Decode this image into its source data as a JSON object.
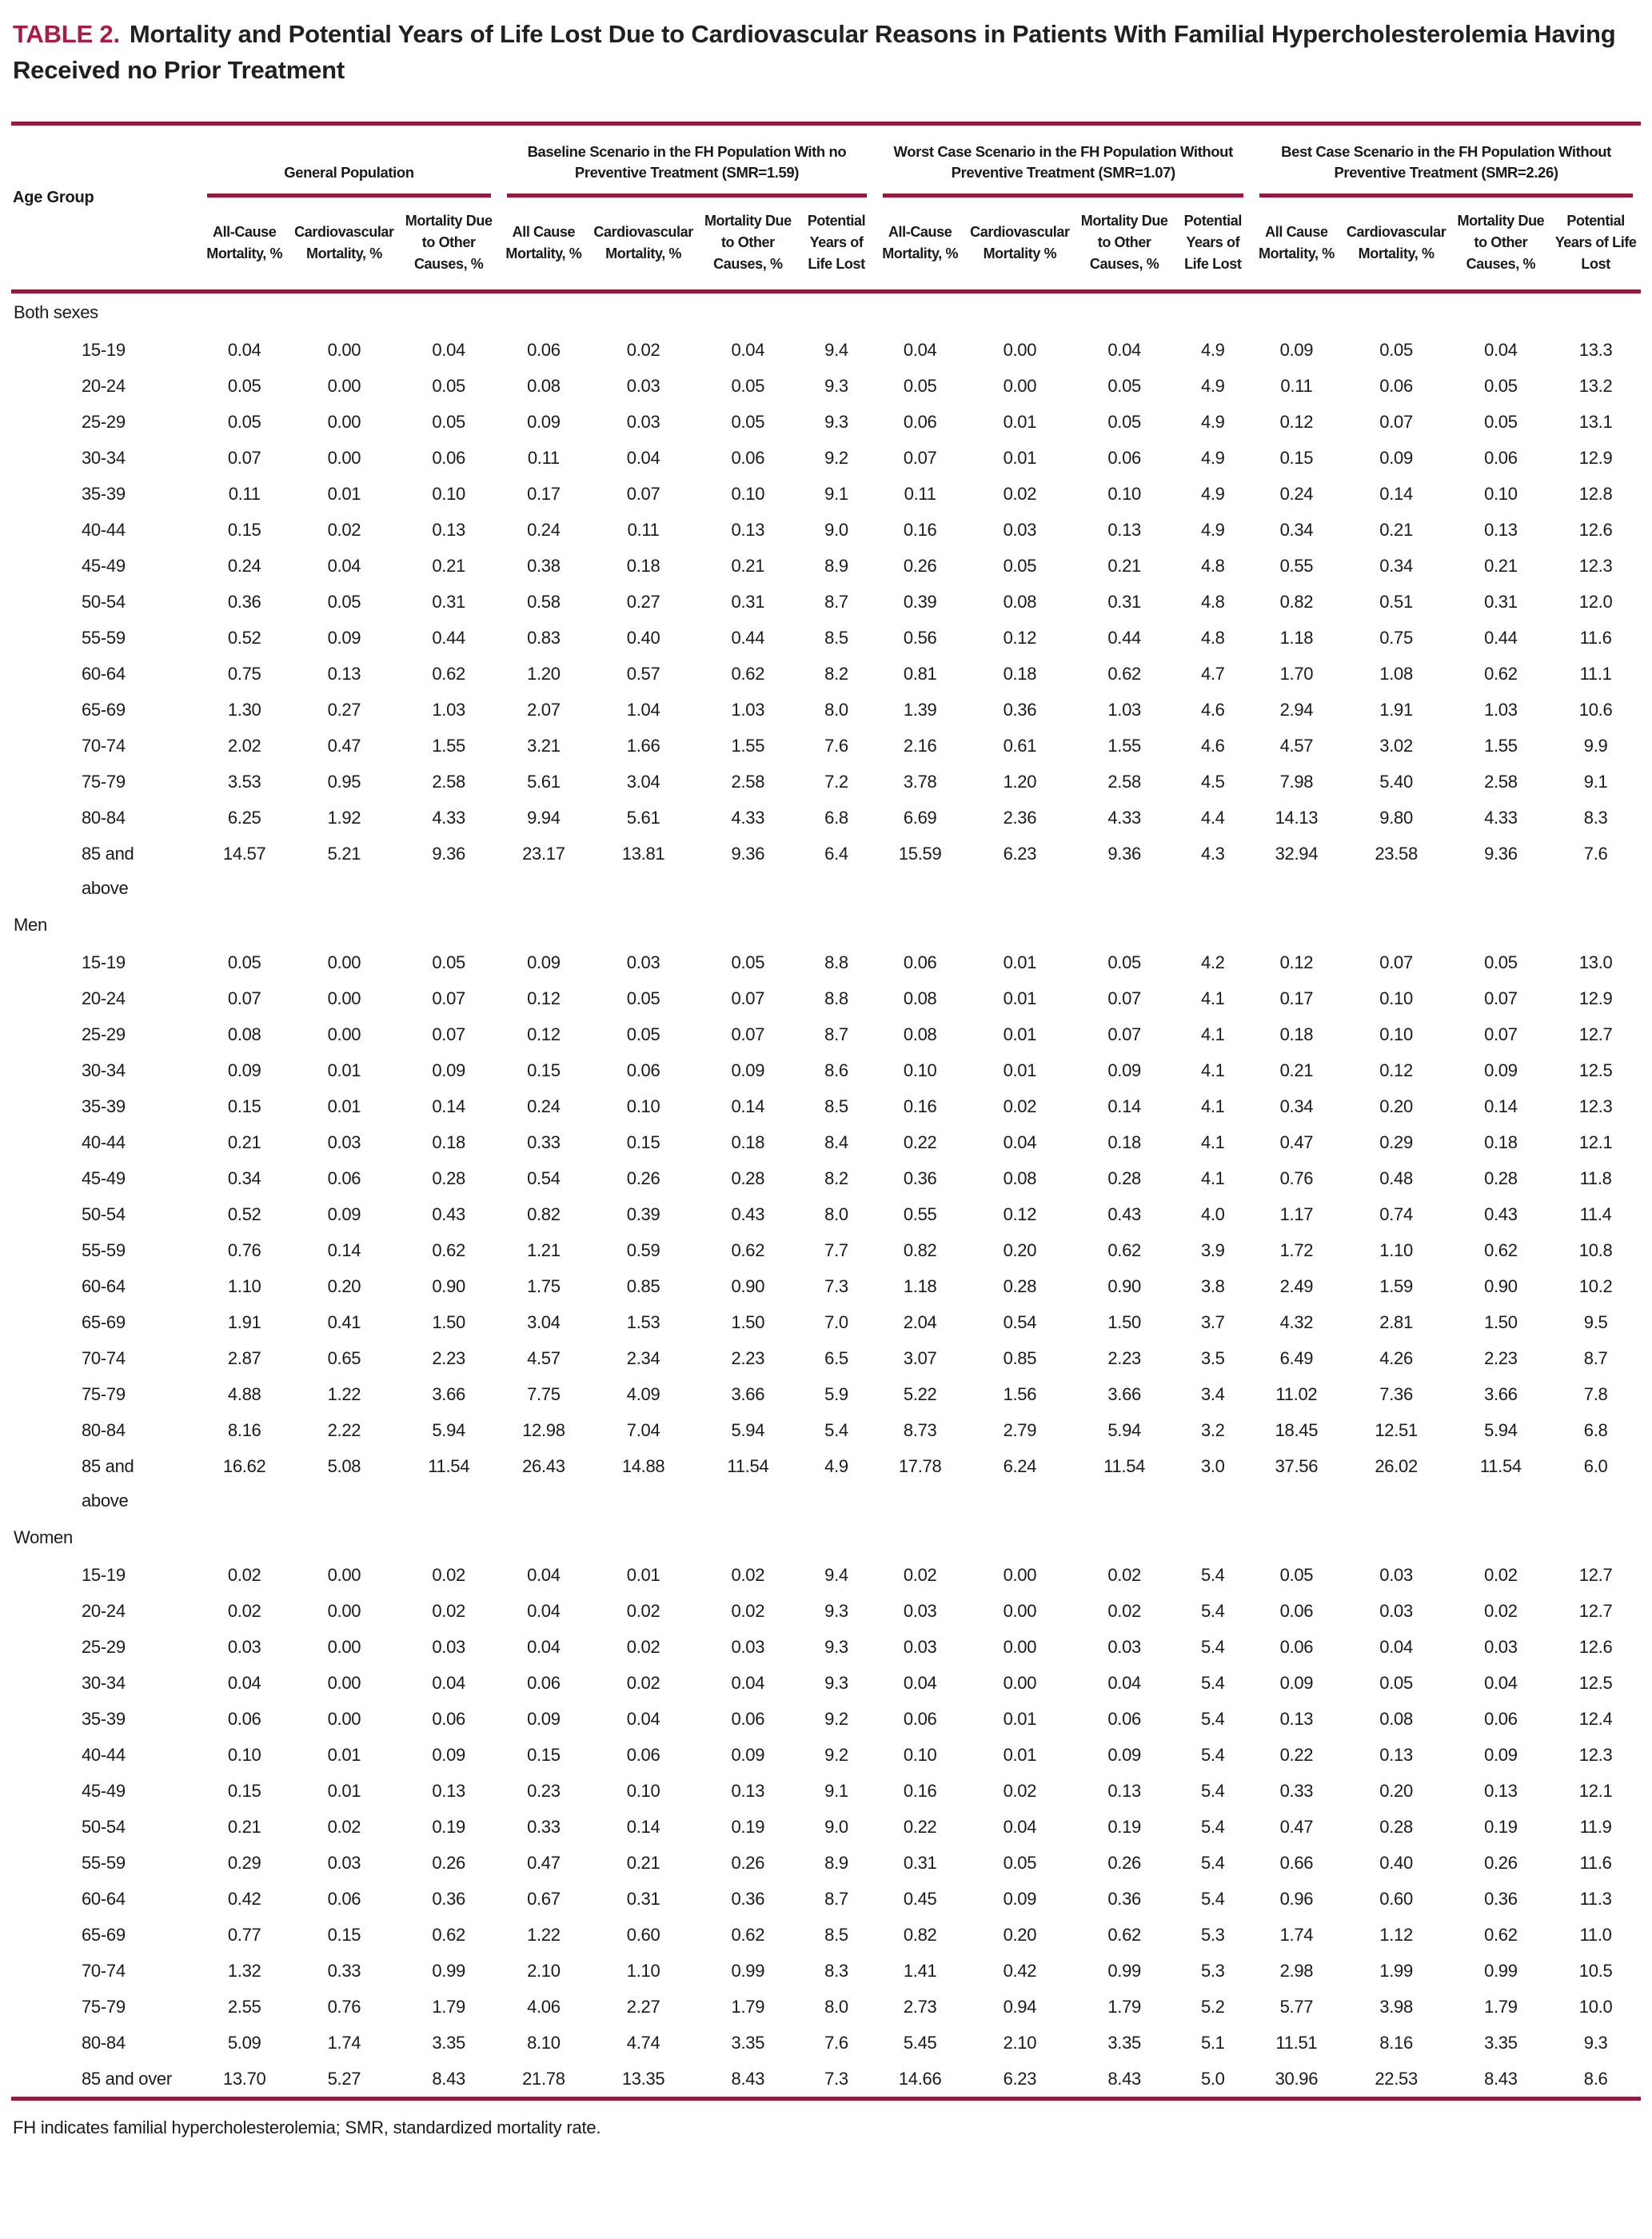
{
  "title": {
    "label": "TABLE 2.",
    "text": "Mortality and Potential Years of Life Lost Due to Cardiovascular Reasons in Patients With Familial Hypercholesterolemia Having Received no Prior Treatment"
  },
  "colors": {
    "accent": "#931b40",
    "title_label": "#a81c46"
  },
  "header": {
    "age_group": "Age Group",
    "groups": [
      {
        "title": "General Population",
        "cols": [
          "All-Cause Mortality, %",
          "Cardiovascular Mortality, %",
          "Mortality Due to Other Causes, %"
        ]
      },
      {
        "title": "Baseline Scenario in the FH Population With no Preventive Treatment (SMR=1.59)",
        "cols": [
          "All Cause Mortality, %",
          "Cardiovascular Mortality, %",
          "Mortality Due to Other Causes, %",
          "Potential Years of Life Lost"
        ]
      },
      {
        "title": "Worst Case Scenario in the FH Population Without Preventive Treatment (SMR=1.07)",
        "cols": [
          "All-Cause Mortality, %",
          "Cardiovascular Mortality %",
          "Mortality Due to Other Causes, %",
          "Potential Years of Life Lost"
        ]
      },
      {
        "title": "Best Case Scenario in the FH Population Without Preventive Treatment (SMR=2.26)",
        "cols": [
          "All Cause Mortality, %",
          "Cardiovascular Mortality, %",
          "Mortality Due to Other Causes, %",
          "Potential Years of Life Lost"
        ]
      }
    ]
  },
  "sections": [
    {
      "label": "Both sexes",
      "rows": [
        {
          "age": "15-19",
          "values": [
            "0.04",
            "0.00",
            "0.04",
            "0.06",
            "0.02",
            "0.04",
            "9.4",
            "0.04",
            "0.00",
            "0.04",
            "4.9",
            "0.09",
            "0.05",
            "0.04",
            "13.3"
          ]
        },
        {
          "age": "20-24",
          "values": [
            "0.05",
            "0.00",
            "0.05",
            "0.08",
            "0.03",
            "0.05",
            "9.3",
            "0.05",
            "0.00",
            "0.05",
            "4.9",
            "0.11",
            "0.06",
            "0.05",
            "13.2"
          ]
        },
        {
          "age": "25-29",
          "values": [
            "0.05",
            "0.00",
            "0.05",
            "0.09",
            "0.03",
            "0.05",
            "9.3",
            "0.06",
            "0.01",
            "0.05",
            "4.9",
            "0.12",
            "0.07",
            "0.05",
            "13.1"
          ]
        },
        {
          "age": "30-34",
          "values": [
            "0.07",
            "0.00",
            "0.06",
            "0.11",
            "0.04",
            "0.06",
            "9.2",
            "0.07",
            "0.01",
            "0.06",
            "4.9",
            "0.15",
            "0.09",
            "0.06",
            "12.9"
          ]
        },
        {
          "age": "35-39",
          "values": [
            "0.11",
            "0.01",
            "0.10",
            "0.17",
            "0.07",
            "0.10",
            "9.1",
            "0.11",
            "0.02",
            "0.10",
            "4.9",
            "0.24",
            "0.14",
            "0.10",
            "12.8"
          ]
        },
        {
          "age": "40-44",
          "values": [
            "0.15",
            "0.02",
            "0.13",
            "0.24",
            "0.11",
            "0.13",
            "9.0",
            "0.16",
            "0.03",
            "0.13",
            "4.9",
            "0.34",
            "0.21",
            "0.13",
            "12.6"
          ]
        },
        {
          "age": "45-49",
          "values": [
            "0.24",
            "0.04",
            "0.21",
            "0.38",
            "0.18",
            "0.21",
            "8.9",
            "0.26",
            "0.05",
            "0.21",
            "4.8",
            "0.55",
            "0.34",
            "0.21",
            "12.3"
          ]
        },
        {
          "age": "50-54",
          "values": [
            "0.36",
            "0.05",
            "0.31",
            "0.58",
            "0.27",
            "0.31",
            "8.7",
            "0.39",
            "0.08",
            "0.31",
            "4.8",
            "0.82",
            "0.51",
            "0.31",
            "12.0"
          ]
        },
        {
          "age": "55-59",
          "values": [
            "0.52",
            "0.09",
            "0.44",
            "0.83",
            "0.40",
            "0.44",
            "8.5",
            "0.56",
            "0.12",
            "0.44",
            "4.8",
            "1.18",
            "0.75",
            "0.44",
            "11.6"
          ]
        },
        {
          "age": "60-64",
          "values": [
            "0.75",
            "0.13",
            "0.62",
            "1.20",
            "0.57",
            "0.62",
            "8.2",
            "0.81",
            "0.18",
            "0.62",
            "4.7",
            "1.70",
            "1.08",
            "0.62",
            "11.1"
          ]
        },
        {
          "age": "65-69",
          "values": [
            "1.30",
            "0.27",
            "1.03",
            "2.07",
            "1.04",
            "1.03",
            "8.0",
            "1.39",
            "0.36",
            "1.03",
            "4.6",
            "2.94",
            "1.91",
            "1.03",
            "10.6"
          ]
        },
        {
          "age": "70-74",
          "values": [
            "2.02",
            "0.47",
            "1.55",
            "3.21",
            "1.66",
            "1.55",
            "7.6",
            "2.16",
            "0.61",
            "1.55",
            "4.6",
            "4.57",
            "3.02",
            "1.55",
            "9.9"
          ]
        },
        {
          "age": "75-79",
          "values": [
            "3.53",
            "0.95",
            "2.58",
            "5.61",
            "3.04",
            "2.58",
            "7.2",
            "3.78",
            "1.20",
            "2.58",
            "4.5",
            "7.98",
            "5.40",
            "2.58",
            "9.1"
          ]
        },
        {
          "age": "80-84",
          "values": [
            "6.25",
            "1.92",
            "4.33",
            "9.94",
            "5.61",
            "4.33",
            "6.8",
            "6.69",
            "2.36",
            "4.33",
            "4.4",
            "14.13",
            "9.80",
            "4.33",
            "8.3"
          ]
        },
        {
          "age": "85 and\nabove",
          "values": [
            "14.57",
            "5.21",
            "9.36",
            "23.17",
            "13.81",
            "9.36",
            "6.4",
            "15.59",
            "6.23",
            "9.36",
            "4.3",
            "32.94",
            "23.58",
            "9.36",
            "7.6"
          ]
        }
      ]
    },
    {
      "label": "Men",
      "rows": [
        {
          "age": "15-19",
          "values": [
            "0.05",
            "0.00",
            "0.05",
            "0.09",
            "0.03",
            "0.05",
            "8.8",
            "0.06",
            "0.01",
            "0.05",
            "4.2",
            "0.12",
            "0.07",
            "0.05",
            "13.0"
          ]
        },
        {
          "age": "20-24",
          "values": [
            "0.07",
            "0.00",
            "0.07",
            "0.12",
            "0.05",
            "0.07",
            "8.8",
            "0.08",
            "0.01",
            "0.07",
            "4.1",
            "0.17",
            "0.10",
            "0.07",
            "12.9"
          ]
        },
        {
          "age": "25-29",
          "values": [
            "0.08",
            "0.00",
            "0.07",
            "0.12",
            "0.05",
            "0.07",
            "8.7",
            "0.08",
            "0.01",
            "0.07",
            "4.1",
            "0.18",
            "0.10",
            "0.07",
            "12.7"
          ]
        },
        {
          "age": "30-34",
          "values": [
            "0.09",
            "0.01",
            "0.09",
            "0.15",
            "0.06",
            "0.09",
            "8.6",
            "0.10",
            "0.01",
            "0.09",
            "4.1",
            "0.21",
            "0.12",
            "0.09",
            "12.5"
          ]
        },
        {
          "age": "35-39",
          "values": [
            "0.15",
            "0.01",
            "0.14",
            "0.24",
            "0.10",
            "0.14",
            "8.5",
            "0.16",
            "0.02",
            "0.14",
            "4.1",
            "0.34",
            "0.20",
            "0.14",
            "12.3"
          ]
        },
        {
          "age": "40-44",
          "values": [
            "0.21",
            "0.03",
            "0.18",
            "0.33",
            "0.15",
            "0.18",
            "8.4",
            "0.22",
            "0.04",
            "0.18",
            "4.1",
            "0.47",
            "0.29",
            "0.18",
            "12.1"
          ]
        },
        {
          "age": "45-49",
          "values": [
            "0.34",
            "0.06",
            "0.28",
            "0.54",
            "0.26",
            "0.28",
            "8.2",
            "0.36",
            "0.08",
            "0.28",
            "4.1",
            "0.76",
            "0.48",
            "0.28",
            "11.8"
          ]
        },
        {
          "age": "50-54",
          "values": [
            "0.52",
            "0.09",
            "0.43",
            "0.82",
            "0.39",
            "0.43",
            "8.0",
            "0.55",
            "0.12",
            "0.43",
            "4.0",
            "1.17",
            "0.74",
            "0.43",
            "11.4"
          ]
        },
        {
          "age": "55-59",
          "values": [
            "0.76",
            "0.14",
            "0.62",
            "1.21",
            "0.59",
            "0.62",
            "7.7",
            "0.82",
            "0.20",
            "0.62",
            "3.9",
            "1.72",
            "1.10",
            "0.62",
            "10.8"
          ]
        },
        {
          "age": "60-64",
          "values": [
            "1.10",
            "0.20",
            "0.90",
            "1.75",
            "0.85",
            "0.90",
            "7.3",
            "1.18",
            "0.28",
            "0.90",
            "3.8",
            "2.49",
            "1.59",
            "0.90",
            "10.2"
          ]
        },
        {
          "age": "65-69",
          "values": [
            "1.91",
            "0.41",
            "1.50",
            "3.04",
            "1.53",
            "1.50",
            "7.0",
            "2.04",
            "0.54",
            "1.50",
            "3.7",
            "4.32",
            "2.81",
            "1.50",
            "9.5"
          ]
        },
        {
          "age": "70-74",
          "values": [
            "2.87",
            "0.65",
            "2.23",
            "4.57",
            "2.34",
            "2.23",
            "6.5",
            "3.07",
            "0.85",
            "2.23",
            "3.5",
            "6.49",
            "4.26",
            "2.23",
            "8.7"
          ]
        },
        {
          "age": "75-79",
          "values": [
            "4.88",
            "1.22",
            "3.66",
            "7.75",
            "4.09",
            "3.66",
            "5.9",
            "5.22",
            "1.56",
            "3.66",
            "3.4",
            "11.02",
            "7.36",
            "3.66",
            "7.8"
          ]
        },
        {
          "age": "80-84",
          "values": [
            "8.16",
            "2.22",
            "5.94",
            "12.98",
            "7.04",
            "5.94",
            "5.4",
            "8.73",
            "2.79",
            "5.94",
            "3.2",
            "18.45",
            "12.51",
            "5.94",
            "6.8"
          ]
        },
        {
          "age": "85 and\nabove",
          "values": [
            "16.62",
            "5.08",
            "11.54",
            "26.43",
            "14.88",
            "11.54",
            "4.9",
            "17.78",
            "6.24",
            "11.54",
            "3.0",
            "37.56",
            "26.02",
            "11.54",
            "6.0"
          ]
        }
      ]
    },
    {
      "label": "Women",
      "rows": [
        {
          "age": "15-19",
          "values": [
            "0.02",
            "0.00",
            "0.02",
            "0.04",
            "0.01",
            "0.02",
            "9.4",
            "0.02",
            "0.00",
            "0.02",
            "5.4",
            "0.05",
            "0.03",
            "0.02",
            "12.7"
          ]
        },
        {
          "age": "20-24",
          "values": [
            "0.02",
            "0.00",
            "0.02",
            "0.04",
            "0.02",
            "0.02",
            "9.3",
            "0.03",
            "0.00",
            "0.02",
            "5.4",
            "0.06",
            "0.03",
            "0.02",
            "12.7"
          ]
        },
        {
          "age": "25-29",
          "values": [
            "0.03",
            "0.00",
            "0.03",
            "0.04",
            "0.02",
            "0.03",
            "9.3",
            "0.03",
            "0.00",
            "0.03",
            "5.4",
            "0.06",
            "0.04",
            "0.03",
            "12.6"
          ]
        },
        {
          "age": "30-34",
          "values": [
            "0.04",
            "0.00",
            "0.04",
            "0.06",
            "0.02",
            "0.04",
            "9.3",
            "0.04",
            "0.00",
            "0.04",
            "5.4",
            "0.09",
            "0.05",
            "0.04",
            "12.5"
          ]
        },
        {
          "age": "35-39",
          "values": [
            "0.06",
            "0.00",
            "0.06",
            "0.09",
            "0.04",
            "0.06",
            "9.2",
            "0.06",
            "0.01",
            "0.06",
            "5.4",
            "0.13",
            "0.08",
            "0.06",
            "12.4"
          ]
        },
        {
          "age": "40-44",
          "values": [
            "0.10",
            "0.01",
            "0.09",
            "0.15",
            "0.06",
            "0.09",
            "9.2",
            "0.10",
            "0.01",
            "0.09",
            "5.4",
            "0.22",
            "0.13",
            "0.09",
            "12.3"
          ]
        },
        {
          "age": "45-49",
          "values": [
            "0.15",
            "0.01",
            "0.13",
            "0.23",
            "0.10",
            "0.13",
            "9.1",
            "0.16",
            "0.02",
            "0.13",
            "5.4",
            "0.33",
            "0.20",
            "0.13",
            "12.1"
          ]
        },
        {
          "age": "50-54",
          "values": [
            "0.21",
            "0.02",
            "0.19",
            "0.33",
            "0.14",
            "0.19",
            "9.0",
            "0.22",
            "0.04",
            "0.19",
            "5.4",
            "0.47",
            "0.28",
            "0.19",
            "11.9"
          ]
        },
        {
          "age": "55-59",
          "values": [
            "0.29",
            "0.03",
            "0.26",
            "0.47",
            "0.21",
            "0.26",
            "8.9",
            "0.31",
            "0.05",
            "0.26",
            "5.4",
            "0.66",
            "0.40",
            "0.26",
            "11.6"
          ]
        },
        {
          "age": "60-64",
          "values": [
            "0.42",
            "0.06",
            "0.36",
            "0.67",
            "0.31",
            "0.36",
            "8.7",
            "0.45",
            "0.09",
            "0.36",
            "5.4",
            "0.96",
            "0.60",
            "0.36",
            "11.3"
          ]
        },
        {
          "age": "65-69",
          "values": [
            "0.77",
            "0.15",
            "0.62",
            "1.22",
            "0.60",
            "0.62",
            "8.5",
            "0.82",
            "0.20",
            "0.62",
            "5.3",
            "1.74",
            "1.12",
            "0.62",
            "11.0"
          ]
        },
        {
          "age": "70-74",
          "values": [
            "1.32",
            "0.33",
            "0.99",
            "2.10",
            "1.10",
            "0.99",
            "8.3",
            "1.41",
            "0.42",
            "0.99",
            "5.3",
            "2.98",
            "1.99",
            "0.99",
            "10.5"
          ]
        },
        {
          "age": "75-79",
          "values": [
            "2.55",
            "0.76",
            "1.79",
            "4.06",
            "2.27",
            "1.79",
            "8.0",
            "2.73",
            "0.94",
            "1.79",
            "5.2",
            "5.77",
            "3.98",
            "1.79",
            "10.0"
          ]
        },
        {
          "age": "80-84",
          "values": [
            "5.09",
            "1.74",
            "3.35",
            "8.10",
            "4.74",
            "3.35",
            "7.6",
            "5.45",
            "2.10",
            "3.35",
            "5.1",
            "11.51",
            "8.16",
            "3.35",
            "9.3"
          ]
        },
        {
          "age": "85 and over",
          "values": [
            "13.70",
            "5.27",
            "8.43",
            "21.78",
            "13.35",
            "8.43",
            "7.3",
            "14.66",
            "6.23",
            "8.43",
            "5.0",
            "30.96",
            "22.53",
            "8.43",
            "8.6"
          ]
        }
      ]
    }
  ],
  "footnote": "FH indicates familial hypercholesterolemia; SMR, standardized mortality rate."
}
